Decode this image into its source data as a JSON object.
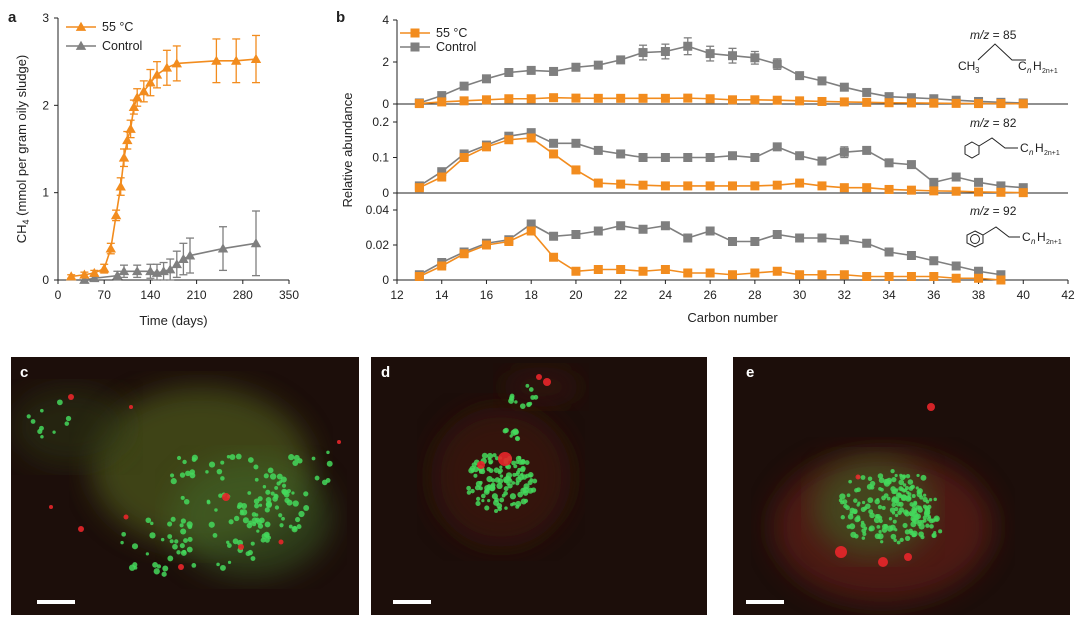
{
  "colors": {
    "heat": "#f28c1e",
    "control": "#7f7f7f",
    "panel_bg": "#1c0e0a",
    "green_cell": "#44d85c",
    "red_cell": "#e8262a"
  },
  "chart_data": [
    {
      "panel": "a",
      "type": "line",
      "xlabel": "Time (days)",
      "ylabel_main": "CH",
      "ylabel_sub": "4",
      "ylabel_rest": " (mmol per gram oily sludge)",
      "xlim": [
        0,
        350
      ],
      "ylim": [
        0,
        3
      ],
      "xticks": [
        0,
        70,
        140,
        210,
        280,
        350
      ],
      "yticks": [
        0,
        1,
        2,
        3
      ],
      "legend": [
        "55 °C",
        "Control"
      ],
      "series": [
        {
          "name": "55 °C",
          "color_key": "heat",
          "x": [
            20,
            40,
            55,
            70,
            80,
            88,
            95,
            100,
            105,
            110,
            115,
            120,
            130,
            140,
            150,
            165,
            180,
            240,
            270,
            300
          ],
          "y": [
            0.04,
            0.06,
            0.08,
            0.13,
            0.36,
            0.74,
            1.07,
            1.4,
            1.6,
            1.73,
            1.98,
            2.09,
            2.16,
            2.26,
            2.35,
            2.43,
            2.48,
            2.51,
            2.51,
            2.53
          ],
          "err": [
            0.02,
            0.03,
            0.03,
            0.05,
            0.06,
            0.06,
            0.1,
            0.1,
            0.1,
            0.1,
            0.08,
            0.1,
            0.12,
            0.15,
            0.15,
            0.2,
            0.2,
            0.25,
            0.25,
            0.27
          ]
        },
        {
          "name": "Control",
          "color_key": "control",
          "x": [
            40,
            55,
            90,
            100,
            120,
            140,
            150,
            160,
            170,
            180,
            190,
            200,
            250,
            300
          ],
          "y": [
            0.0,
            0.02,
            0.05,
            0.1,
            0.1,
            0.1,
            0.08,
            0.1,
            0.12,
            0.18,
            0.24,
            0.28,
            0.36,
            0.42
          ],
          "err": [
            0.01,
            0.02,
            0.05,
            0.07,
            0.07,
            0.08,
            0.1,
            0.1,
            0.12,
            0.15,
            0.18,
            0.2,
            0.25,
            0.37
          ]
        }
      ]
    },
    {
      "panel": "b",
      "type": "line",
      "xlabel": "Carbon number",
      "ylabel": "Relative abundance",
      "xlim": [
        12,
        42
      ],
      "xticks": [
        12,
        14,
        16,
        18,
        20,
        22,
        24,
        26,
        28,
        30,
        32,
        34,
        36,
        38,
        40,
        42
      ],
      "legend": [
        "55 °C",
        "Control"
      ],
      "subplots": [
        {
          "mz_label": "m/z",
          "mz_value": " = 85",
          "ylim": [
            0,
            4
          ],
          "yticks": [
            "0",
            "2",
            "4"
          ],
          "ytick_values": [
            0,
            2,
            4
          ],
          "structure_text": "CH3 C nH2n+1",
          "series": [
            {
              "name": "55 °C",
              "color_key": "heat",
              "x": [
                13,
                14,
                15,
                16,
                17,
                18,
                19,
                20,
                21,
                22,
                23,
                24,
                25,
                26,
                27,
                28,
                29,
                30,
                31,
                32,
                33,
                34,
                35,
                36,
                37,
                38,
                39,
                40
              ],
              "y": [
                0.02,
                0.1,
                0.15,
                0.2,
                0.25,
                0.25,
                0.3,
                0.28,
                0.27,
                0.27,
                0.27,
                0.27,
                0.28,
                0.25,
                0.2,
                0.2,
                0.18,
                0.15,
                0.12,
                0.1,
                0.08,
                0.06,
                0.05,
                0.04,
                0.03,
                0.02,
                0.02,
                0.01
              ],
              "err": [
                0.01,
                0.02,
                0.03,
                0.03,
                0.03,
                0.03,
                0.03,
                0.03,
                0.03,
                0.03,
                0.03,
                0.03,
                0.03,
                0.03,
                0.03,
                0.03,
                0.03,
                0.03,
                0.03,
                0.03,
                0.03,
                0.02,
                0.02,
                0.02,
                0.02,
                0.02,
                0.02,
                0.01
              ]
            },
            {
              "name": "Control",
              "color_key": "control",
              "x": [
                13,
                14,
                15,
                16,
                17,
                18,
                19,
                20,
                21,
                22,
                23,
                24,
                25,
                26,
                27,
                28,
                29,
                30,
                31,
                32,
                33,
                34,
                35,
                36,
                37,
                38,
                39,
                40
              ],
              "y": [
                0.05,
                0.4,
                0.85,
                1.2,
                1.5,
                1.6,
                1.55,
                1.75,
                1.85,
                2.1,
                2.45,
                2.5,
                2.75,
                2.4,
                2.3,
                2.2,
                1.9,
                1.35,
                1.1,
                0.8,
                0.55,
                0.35,
                0.3,
                0.25,
                0.18,
                0.12,
                0.08,
                0.05
              ],
              "err": [
                0.05,
                0.1,
                0.1,
                0.1,
                0.1,
                0.15,
                0.15,
                0.15,
                0.15,
                0.15,
                0.35,
                0.35,
                0.4,
                0.35,
                0.35,
                0.3,
                0.25,
                0.15,
                0.15,
                0.1,
                0.1,
                0.08,
                0.08,
                0.05,
                0.05,
                0.05,
                0.05,
                0.03
              ]
            }
          ]
        },
        {
          "mz_label": "m/z",
          "mz_value": " = 82",
          "ylim": [
            0,
            0.2
          ],
          "yticks": [
            "0",
            "0.1",
            "0.2"
          ],
          "ytick_values": [
            0,
            0.1,
            0.2
          ],
          "structure_text": "C nH2n+1",
          "series": [
            {
              "name": "55 °C",
              "color_key": "heat",
              "x": [
                13,
                14,
                15,
                16,
                17,
                18,
                19,
                20,
                21,
                22,
                23,
                24,
                25,
                26,
                27,
                28,
                29,
                30,
                31,
                32,
                33,
                34,
                35,
                36,
                37,
                38,
                39,
                40
              ],
              "y": [
                0.015,
                0.045,
                0.1,
                0.13,
                0.15,
                0.155,
                0.11,
                0.065,
                0.028,
                0.025,
                0.022,
                0.02,
                0.02,
                0.02,
                0.02,
                0.02,
                0.022,
                0.028,
                0.02,
                0.015,
                0.015,
                0.01,
                0.008,
                0.006,
                0.005,
                0.003,
                0.002,
                0.001
              ],
              "err": [
                0.005,
                0.005,
                0.008,
                0.008,
                0.008,
                0.008,
                0.008,
                0.006,
                0.004,
                0.004,
                0.004,
                0.004,
                0.004,
                0.004,
                0.004,
                0.004,
                0.004,
                0.004,
                0.004,
                0.003,
                0.003,
                0.003,
                0.003,
                0.002,
                0.002,
                0.002,
                0.002,
                0.001
              ]
            },
            {
              "name": "Control",
              "color_key": "control",
              "x": [
                13,
                14,
                15,
                16,
                17,
                18,
                19,
                20,
                21,
                22,
                23,
                24,
                25,
                26,
                27,
                28,
                29,
                30,
                31,
                32,
                33,
                34,
                35,
                36,
                37,
                38,
                39,
                40
              ],
              "y": [
                0.02,
                0.06,
                0.11,
                0.135,
                0.16,
                0.17,
                0.14,
                0.14,
                0.12,
                0.11,
                0.1,
                0.1,
                0.1,
                0.1,
                0.105,
                0.1,
                0.13,
                0.105,
                0.09,
                0.115,
                0.12,
                0.085,
                0.08,
                0.03,
                0.045,
                0.03,
                0.02,
                0.015
              ],
              "err": [
                0.005,
                0.008,
                0.008,
                0.01,
                0.01,
                0.01,
                0.01,
                0.008,
                0.008,
                0.008,
                0.008,
                0.008,
                0.008,
                0.008,
                0.008,
                0.008,
                0.008,
                0.008,
                0.008,
                0.015,
                0.008,
                0.008,
                0.008,
                0.006,
                0.006,
                0.006,
                0.005,
                0.005
              ]
            }
          ]
        },
        {
          "mz_label": "m/z",
          "mz_value": " = 92",
          "ylim": [
            0,
            0.04
          ],
          "yticks": [
            "0",
            "0.02",
            "0.04"
          ],
          "ytick_values": [
            0,
            0.02,
            0.04
          ],
          "structure_text": "C nH2n+1",
          "series": [
            {
              "name": "55 °C",
              "color_key": "heat",
              "x": [
                13,
                14,
                15,
                16,
                17,
                18,
                19,
                20,
                21,
                22,
                23,
                24,
                25,
                26,
                27,
                28,
                29,
                30,
                31,
                32,
                33,
                34,
                35,
                36,
                37,
                38,
                39
              ],
              "y": [
                0.002,
                0.008,
                0.015,
                0.02,
                0.022,
                0.028,
                0.013,
                0.005,
                0.006,
                0.006,
                0.005,
                0.006,
                0.004,
                0.004,
                0.003,
                0.004,
                0.005,
                0.003,
                0.003,
                0.003,
                0.002,
                0.002,
                0.002,
                0.002,
                0.001,
                0.001,
                0.0
              ],
              "err": [
                0.001,
                0.001,
                0.001,
                0.001,
                0.001,
                0.002,
                0.001,
                0.001,
                0.001,
                0.001,
                0.001,
                0.001,
                0.001,
                0.001,
                0.001,
                0.001,
                0.001,
                0.001,
                0.001,
                0.001,
                0.001,
                0.001,
                0.001,
                0.001,
                0.001,
                0.001,
                0.001
              ]
            },
            {
              "name": "Control",
              "color_key": "control",
              "x": [
                13,
                14,
                15,
                16,
                17,
                18,
                19,
                20,
                21,
                22,
                23,
                24,
                25,
                26,
                27,
                28,
                29,
                30,
                31,
                32,
                33,
                34,
                35,
                36,
                37,
                38,
                39
              ],
              "y": [
                0.003,
                0.01,
                0.016,
                0.021,
                0.023,
                0.032,
                0.025,
                0.026,
                0.028,
                0.031,
                0.029,
                0.031,
                0.024,
                0.028,
                0.022,
                0.022,
                0.026,
                0.024,
                0.024,
                0.023,
                0.021,
                0.016,
                0.014,
                0.011,
                0.008,
                0.005,
                0.003
              ],
              "err": [
                0.001,
                0.001,
                0.001,
                0.001,
                0.001,
                0.002,
                0.002,
                0.001,
                0.001,
                0.001,
                0.001,
                0.001,
                0.001,
                0.001,
                0.001,
                0.001,
                0.001,
                0.002,
                0.002,
                0.002,
                0.002,
                0.002,
                0.001,
                0.001,
                0.001,
                0.001,
                0.001
              ]
            }
          ]
        }
      ]
    }
  ],
  "panels": {
    "a": "a",
    "b": "b",
    "c": "c",
    "d": "d",
    "e": "e"
  }
}
